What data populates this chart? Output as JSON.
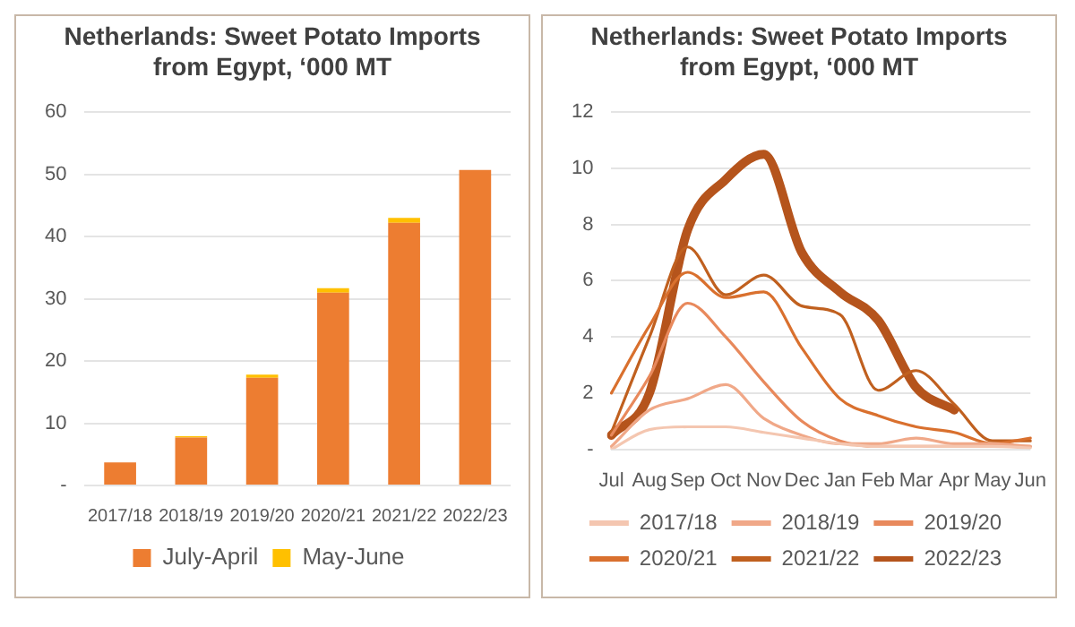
{
  "chart_data": [
    {
      "type": "bar",
      "title": "Netherlands: Sweet Potato Imports from Egypt, ‘000 MT",
      "categories": [
        "2017/18",
        "2018/19",
        "2019/20",
        "2020/21",
        "2021/22",
        "2022/23"
      ],
      "stacked": true,
      "series": [
        {
          "name": "July-April",
          "color": "#ed7d31",
          "values": [
            3.7,
            7.7,
            17.3,
            31,
            42.2,
            50.7
          ]
        },
        {
          "name": "May-June",
          "color": "#ffc000",
          "values": [
            null,
            0.2,
            0.5,
            0.7,
            0.8,
            null
          ]
        }
      ],
      "ylim": [
        0,
        60
      ],
      "yticks": [
        {
          "value": 0,
          "label": "-"
        },
        10,
        20,
        30,
        40,
        50,
        60
      ],
      "grid": "y",
      "legend": "bottom"
    },
    {
      "type": "line",
      "title": "Netherlands: Sweet Potato Imports from Egypt, ‘000 MT",
      "categories": [
        "Jul",
        "Aug",
        "Sep",
        "Oct",
        "Nov",
        "Dec",
        "Jan",
        "Feb",
        "Mar",
        "Apr",
        "May",
        "Jun"
      ],
      "series": [
        {
          "name": "2017/18",
          "color": "#f4c6b0",
          "values": [
            0,
            0.7,
            0.8,
            0.8,
            0.6,
            0.4,
            0.2,
            0.1,
            0.1,
            0.1,
            0.1,
            0.05
          ]
        },
        {
          "name": "2018/19",
          "color": "#f0a888",
          "values": [
            0.1,
            1.4,
            1.8,
            2.3,
            1.1,
            0.5,
            0.2,
            0.2,
            0.4,
            0.2,
            0.2,
            0.1
          ]
        },
        {
          "name": "2019/20",
          "color": "#e8895c",
          "values": [
            0.5,
            2.6,
            5.2,
            4.0,
            2.4,
            1.0,
            0.3,
            0.1,
            0.1,
            0.1,
            0.1,
            0.1
          ]
        },
        {
          "name": "2020/21",
          "color": "#d9702e",
          "values": [
            2.0,
            4.4,
            6.3,
            5.4,
            5.6,
            3.6,
            1.8,
            1.2,
            0.8,
            0.6,
            0.2,
            0.4
          ]
        },
        {
          "name": "2021/22",
          "color": "#c0601f",
          "values": [
            0.6,
            4.0,
            7.2,
            5.5,
            6.2,
            5.1,
            4.8,
            2.1,
            2.8,
            1.6,
            0.3,
            0.3
          ]
        },
        {
          "name": "2022/23",
          "color": "#b5541c",
          "values": [
            0.5,
            2.0,
            7.8,
            9.6,
            10.5,
            7.0,
            5.6,
            4.6,
            2.2,
            1.4,
            null,
            null
          ]
        }
      ],
      "ylim": [
        0,
        12
      ],
      "yticks": [
        {
          "value": 0,
          "label": "-"
        },
        2,
        4,
        6,
        8,
        10,
        12
      ],
      "grid": "y",
      "legend": "bottom",
      "marker": "none",
      "line_style": "solid"
    }
  ]
}
